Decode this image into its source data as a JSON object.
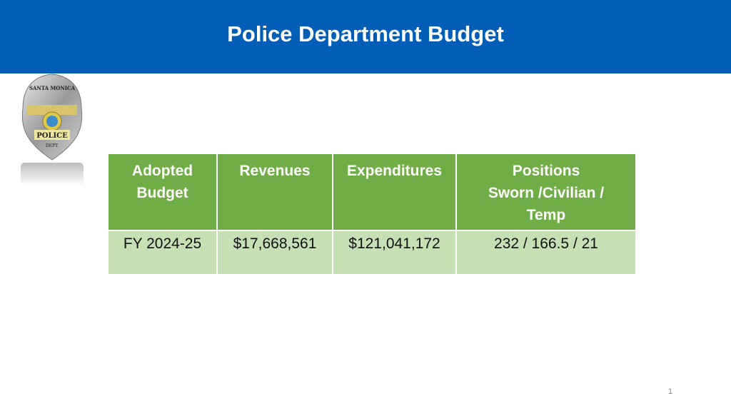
{
  "title": "Police Department Budget",
  "logo": {
    "text_top": "SANTA MONICA",
    "text_mid": "POLICE",
    "text_bottom": "DEPT."
  },
  "table": {
    "headers": [
      "Adopted Budget",
      "Revenues",
      "Expenditures",
      "Positions Sworn /Civilian / Temp"
    ],
    "header_lines": [
      [
        "Adopted",
        "Budget"
      ],
      [
        "Revenues"
      ],
      [
        "Expenditures"
      ],
      [
        "Positions",
        "Sworn /Civilian /",
        "Temp"
      ]
    ],
    "rows": [
      [
        "FY 2024-25",
        "$17,668,561",
        "$121,041,172",
        "232 / 166.5 / 21"
      ]
    ]
  },
  "page_number": "1",
  "colors": {
    "header_bar": "#005eb8",
    "table_header": "#70ad47",
    "table_row": "#c5e0b4"
  }
}
